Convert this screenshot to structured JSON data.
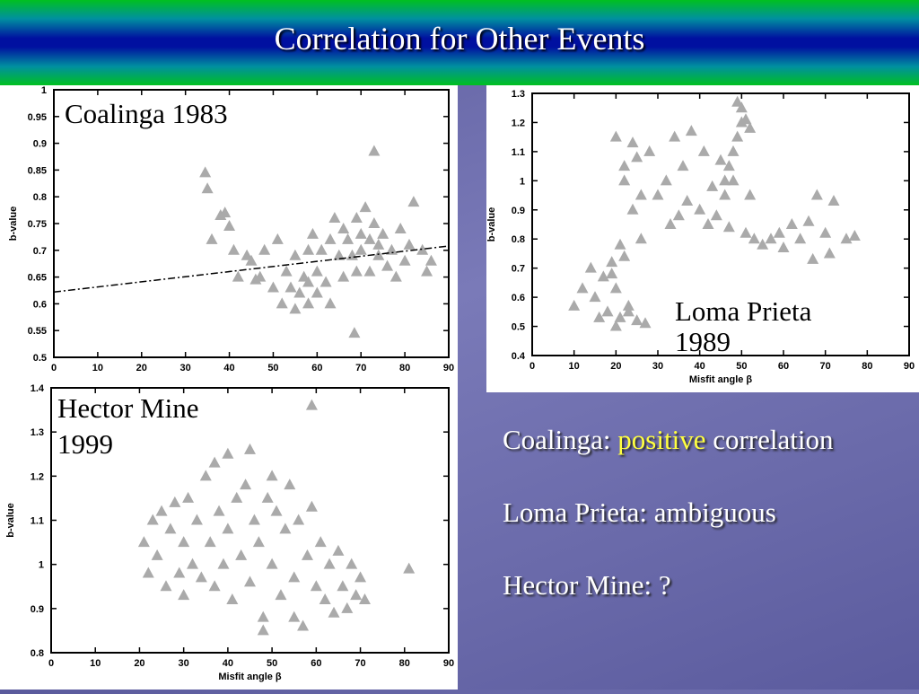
{
  "slide": {
    "title": "Correlation for Other Events",
    "notes": [
      "Coalinga:",
      "positive",
      "correlation",
      "Loma Prieta: ambiguous",
      "Hector Mine: ?"
    ]
  },
  "chart_data": [
    {
      "type": "scatter",
      "annotation": [
        "Coalinga 1983"
      ],
      "ylabel": "b-value",
      "color": "#aaaaaa",
      "marker": "triangle",
      "xlim": [
        0,
        90
      ],
      "ylim": [
        0.5,
        1
      ],
      "xticks": [
        0,
        10,
        20,
        30,
        40,
        50,
        60,
        70,
        80,
        90
      ],
      "yticks": [
        0.5,
        0.55,
        0.6,
        0.65,
        0.7,
        0.75,
        0.8,
        0.85,
        0.9,
        0.95,
        1
      ],
      "trend_line": {
        "x": [
          0,
          90
        ],
        "y": [
          0.622,
          0.708
        ]
      },
      "x": [
        34.5,
        35,
        36,
        38,
        39,
        40,
        41,
        42,
        44,
        45,
        46,
        47,
        48,
        50,
        51,
        52,
        53,
        54,
        55,
        55,
        56,
        57,
        58,
        58,
        59,
        60,
        60,
        61,
        62,
        63,
        63,
        64,
        65,
        66,
        66,
        67,
        68,
        69,
        69,
        70,
        70,
        71,
        72,
        72,
        73,
        74,
        74,
        75,
        76,
        77,
        78,
        79,
        80,
        81,
        82,
        84,
        85,
        86,
        68.5,
        58,
        73
      ],
      "y": [
        0.845,
        0.815,
        0.72,
        0.765,
        0.77,
        0.745,
        0.7,
        0.65,
        0.69,
        0.68,
        0.645,
        0.65,
        0.7,
        0.63,
        0.72,
        0.6,
        0.66,
        0.63,
        0.59,
        0.69,
        0.62,
        0.65,
        0.7,
        0.6,
        0.73,
        0.66,
        0.62,
        0.7,
        0.64,
        0.72,
        0.6,
        0.76,
        0.69,
        0.65,
        0.74,
        0.72,
        0.69,
        0.76,
        0.66,
        0.7,
        0.73,
        0.78,
        0.66,
        0.72,
        0.75,
        0.69,
        0.71,
        0.73,
        0.67,
        0.7,
        0.65,
        0.74,
        0.68,
        0.71,
        0.79,
        0.7,
        0.66,
        0.68,
        0.545,
        0.64,
        0.885
      ]
    },
    {
      "type": "scatter",
      "annotation": [
        "Loma Prieta",
        "1989"
      ],
      "xlabel": "Misfit angle β",
      "ylabel": "b-value",
      "color": "#aaaaaa",
      "marker": "triangle",
      "xlim": [
        0,
        90
      ],
      "ylim": [
        0.4,
        1.3
      ],
      "xticks": [
        0,
        10,
        20,
        30,
        40,
        50,
        60,
        70,
        80,
        90
      ],
      "yticks": [
        0.4,
        0.5,
        0.6,
        0.7,
        0.8,
        0.9,
        1,
        1.1,
        1.2,
        1.3
      ],
      "x": [
        10,
        12,
        14,
        15,
        16,
        17,
        18,
        19,
        20,
        20,
        21,
        22,
        22,
        23,
        24,
        25,
        26,
        27,
        19,
        20,
        21,
        22,
        23,
        24,
        25,
        26,
        28,
        30,
        32,
        33,
        34,
        35,
        36,
        37,
        38,
        40,
        41,
        42,
        43,
        44,
        45,
        46,
        47,
        48,
        49,
        50,
        51,
        52,
        53,
        55,
        57,
        59,
        60,
        62,
        64,
        66,
        67,
        68,
        70,
        71,
        72,
        75,
        77,
        48,
        49,
        50,
        51,
        52,
        46,
        47
      ],
      "y": [
        0.57,
        0.63,
        0.7,
        0.6,
        0.53,
        0.67,
        0.55,
        0.72,
        0.5,
        0.63,
        0.53,
        0.74,
        1.05,
        0.57,
        1.13,
        0.52,
        0.95,
        0.51,
        0.68,
        1.15,
        0.78,
        1.0,
        0.55,
        0.9,
        1.08,
        0.8,
        1.1,
        0.95,
        1.0,
        0.85,
        1.15,
        0.88,
        1.05,
        0.93,
        1.17,
        0.9,
        1.1,
        0.85,
        0.98,
        0.88,
        1.07,
        0.95,
        0.84,
        1.0,
        1.27,
        1.2,
        0.82,
        0.95,
        0.8,
        0.78,
        0.8,
        0.82,
        0.77,
        0.85,
        0.8,
        0.86,
        0.73,
        0.95,
        0.82,
        0.75,
        0.93,
        0.8,
        0.81,
        1.1,
        1.15,
        1.25,
        1.21,
        1.18,
        1.0,
        1.05
      ]
    },
    {
      "type": "scatter",
      "annotation": [
        "Hector Mine",
        "1999"
      ],
      "xlabel": "Misfit angle β",
      "ylabel": "b-value",
      "color": "#aaaaaa",
      "marker": "triangle",
      "xlim": [
        0,
        90
      ],
      "ylim": [
        0.8,
        1.4
      ],
      "xticks": [
        0,
        10,
        20,
        30,
        40,
        50,
        60,
        70,
        80,
        90
      ],
      "yticks": [
        0.8,
        0.9,
        1,
        1.1,
        1.2,
        1.3,
        1.4
      ],
      "x": [
        21,
        22,
        23,
        24,
        25,
        26,
        27,
        28,
        29,
        30,
        30,
        31,
        32,
        33,
        34,
        35,
        36,
        37,
        37,
        38,
        39,
        40,
        40,
        41,
        42,
        43,
        44,
        45,
        45,
        46,
        47,
        48,
        49,
        50,
        50,
        51,
        52,
        53,
        54,
        55,
        56,
        57,
        58,
        59,
        60,
        61,
        62,
        63,
        64,
        65,
        66,
        67,
        68,
        69,
        70,
        71,
        59,
        81,
        48,
        55
      ],
      "y": [
        1.05,
        0.98,
        1.1,
        1.02,
        1.12,
        0.95,
        1.08,
        1.14,
        0.98,
        1.05,
        0.93,
        1.15,
        1.0,
        1.1,
        0.97,
        1.2,
        1.05,
        0.95,
        1.23,
        1.12,
        1.0,
        1.08,
        1.25,
        0.92,
        1.15,
        1.02,
        1.18,
        0.96,
        1.26,
        1.1,
        1.05,
        0.88,
        1.15,
        1.2,
        1.0,
        1.12,
        0.93,
        1.08,
        1.18,
        0.97,
        1.1,
        0.86,
        1.02,
        1.13,
        0.95,
        1.05,
        0.92,
        1.0,
        0.89,
        1.03,
        0.95,
        0.9,
        1.0,
        0.93,
        0.97,
        0.92,
        1.36,
        0.99,
        0.85,
        0.88
      ]
    }
  ]
}
